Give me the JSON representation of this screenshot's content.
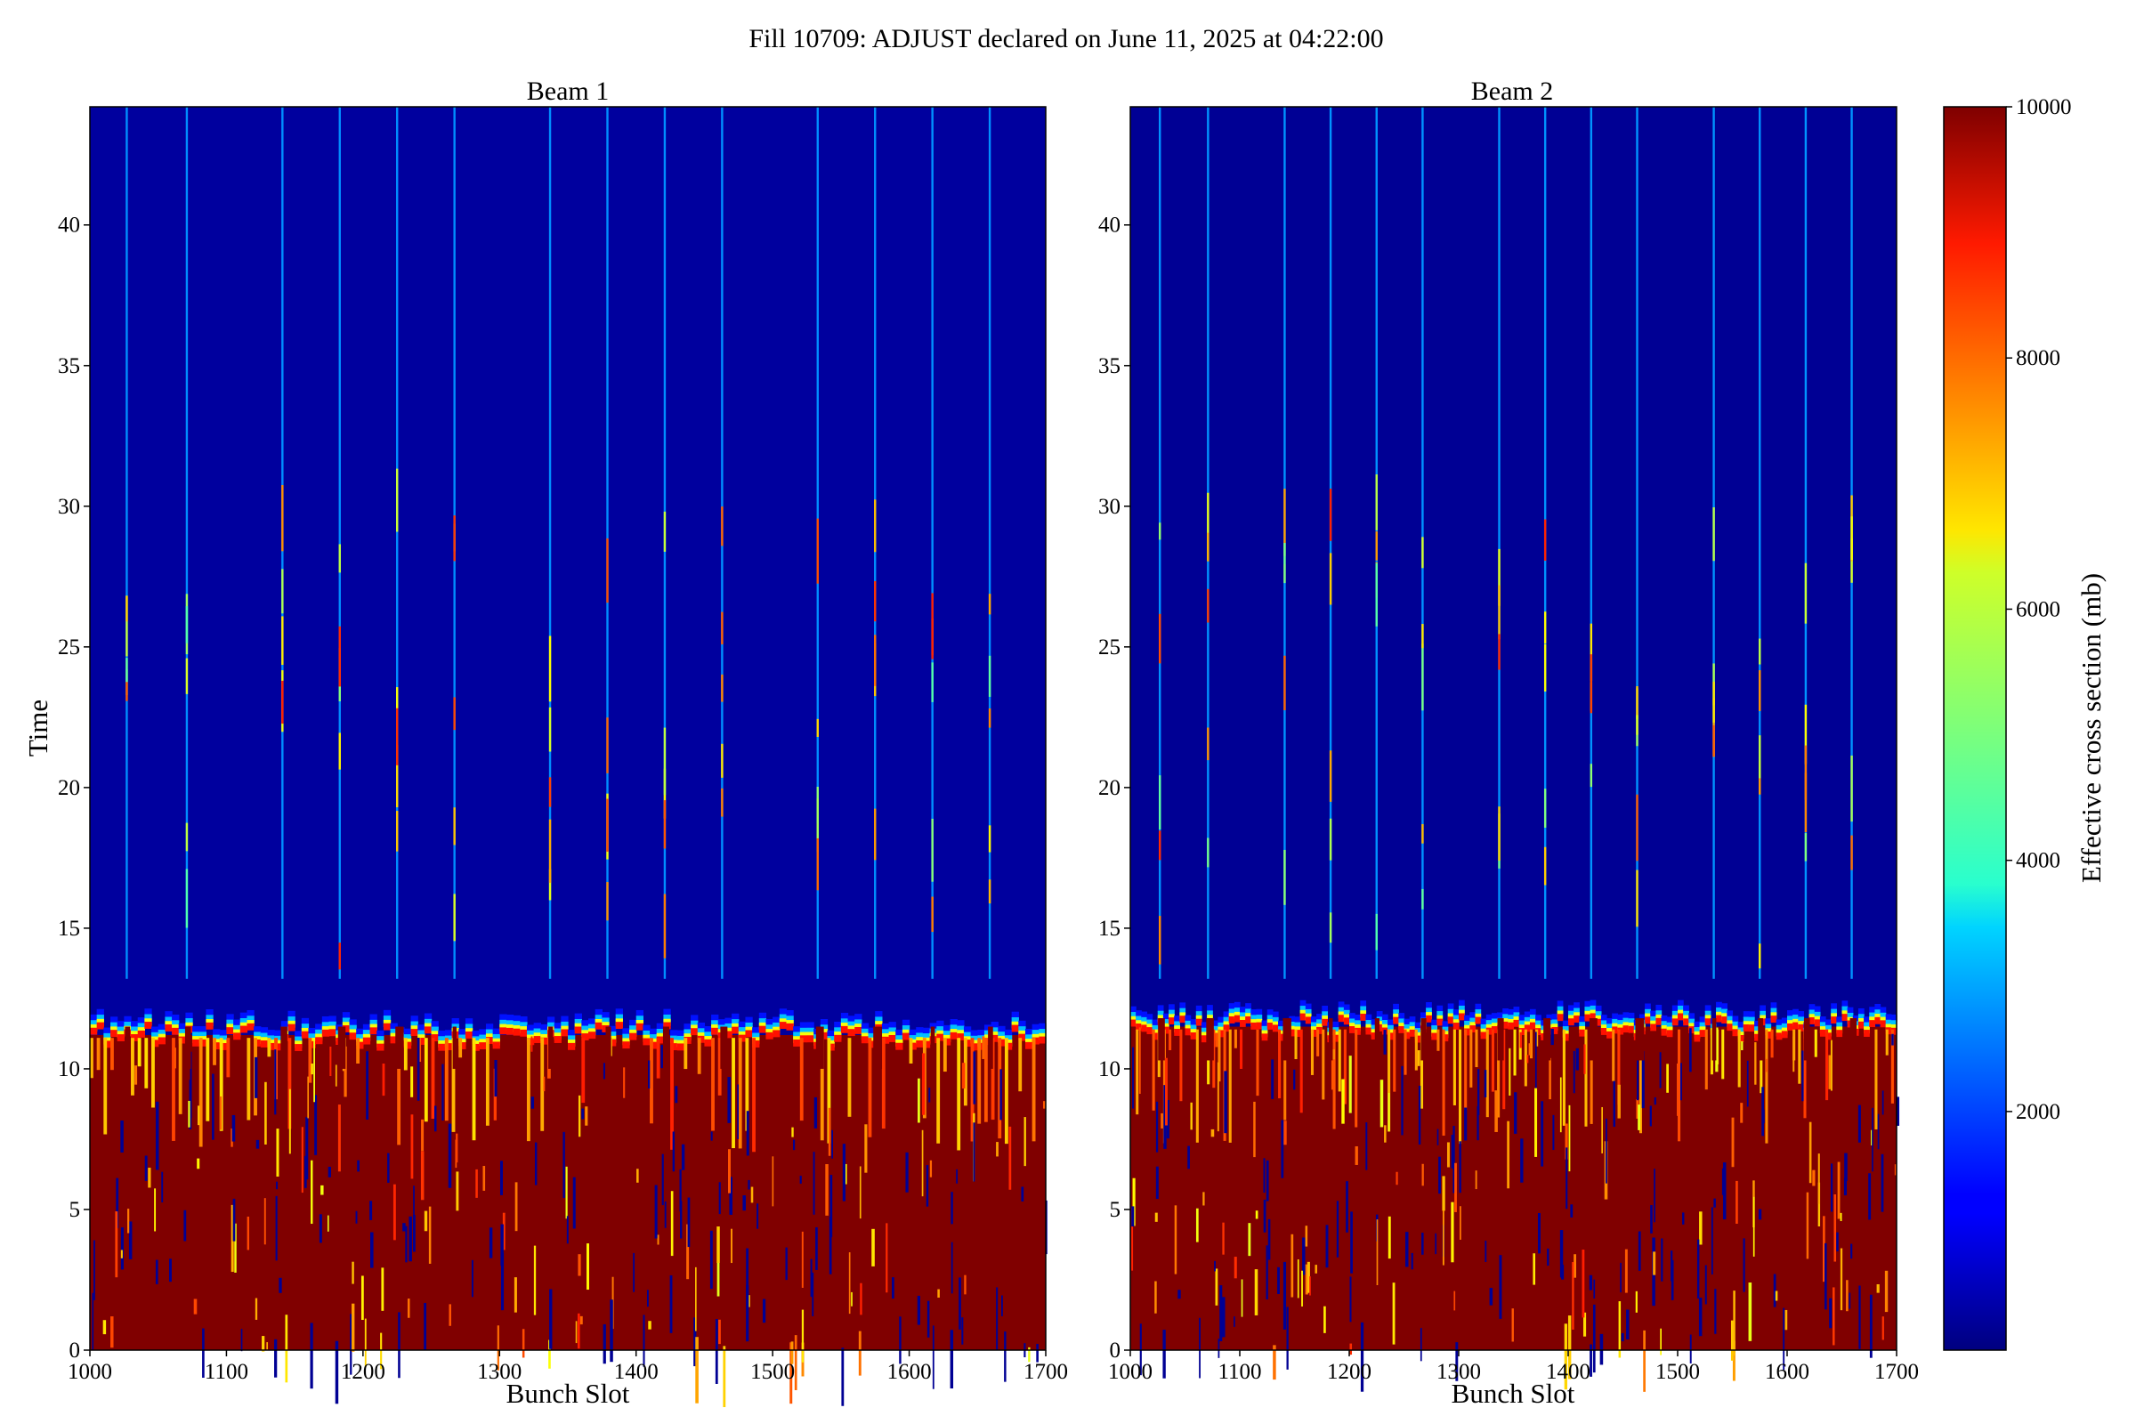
{
  "chart_data": {
    "type": "heatmap",
    "title": "Fill 10709: ADJUST declared on June 11, 2025 at 04:22:00",
    "colormap": "jet",
    "colorbar": {
      "label": "Effective cross section (mb)",
      "range": [
        100,
        10000
      ],
      "ticks": [
        2000,
        4000,
        6000,
        8000,
        10000
      ],
      "tick_labels": [
        "2000",
        "4000",
        "6000",
        "8000",
        "10000"
      ]
    },
    "panels": [
      {
        "name": "Beam 1",
        "title": "Beam 1",
        "xlabel": "Bunch Slot",
        "ylabel": "Time",
        "xlim": [
          1000,
          1700
        ],
        "ylim": [
          0,
          44.2
        ],
        "xticks": [
          1000,
          1100,
          1200,
          1300,
          1400,
          1500,
          1600,
          1700
        ],
        "xtick_labels": [
          "1000",
          "1100",
          "1200",
          "1300",
          "1400",
          "1500",
          "1600",
          "1700"
        ],
        "yticks": [
          0,
          5,
          10,
          15,
          20,
          25,
          30,
          35,
          40
        ],
        "ytick_labels": [
          "0",
          "5",
          "10",
          "15",
          "20",
          "25",
          "30",
          "35",
          "40"
        ],
        "high_region_until_time": 11.2,
        "background_value_after": 400,
        "train_edge_slots": [
          1027,
          1071,
          1141,
          1183,
          1225,
          1267,
          1337,
          1379,
          1421,
          1463,
          1533,
          1575,
          1617,
          1659
        ],
        "streak_peak_value": 4500
      },
      {
        "name": "Beam 2",
        "title": "Beam 2",
        "xlabel": "Bunch Slot",
        "ylabel": "",
        "xlim": [
          1000,
          1700
        ],
        "ylim": [
          0,
          44.2
        ],
        "xticks": [
          1000,
          1100,
          1200,
          1300,
          1400,
          1500,
          1600,
          1700
        ],
        "xtick_labels": [
          "1000",
          "1100",
          "1200",
          "1300",
          "1400",
          "1500",
          "1600",
          "1700"
        ],
        "yticks": [
          0,
          5,
          10,
          15,
          20,
          25,
          30,
          35,
          40
        ],
        "ytick_labels": [
          "0",
          "5",
          "10",
          "15",
          "20",
          "25",
          "30",
          "35",
          "40"
        ],
        "high_region_until_time": 11.5,
        "background_value_after": 300,
        "train_edge_slots": [
          1027,
          1071,
          1141,
          1183,
          1225,
          1267,
          1337,
          1379,
          1421,
          1463,
          1533,
          1575,
          1617,
          1659
        ],
        "streak_peak_value": 4500
      }
    ]
  }
}
